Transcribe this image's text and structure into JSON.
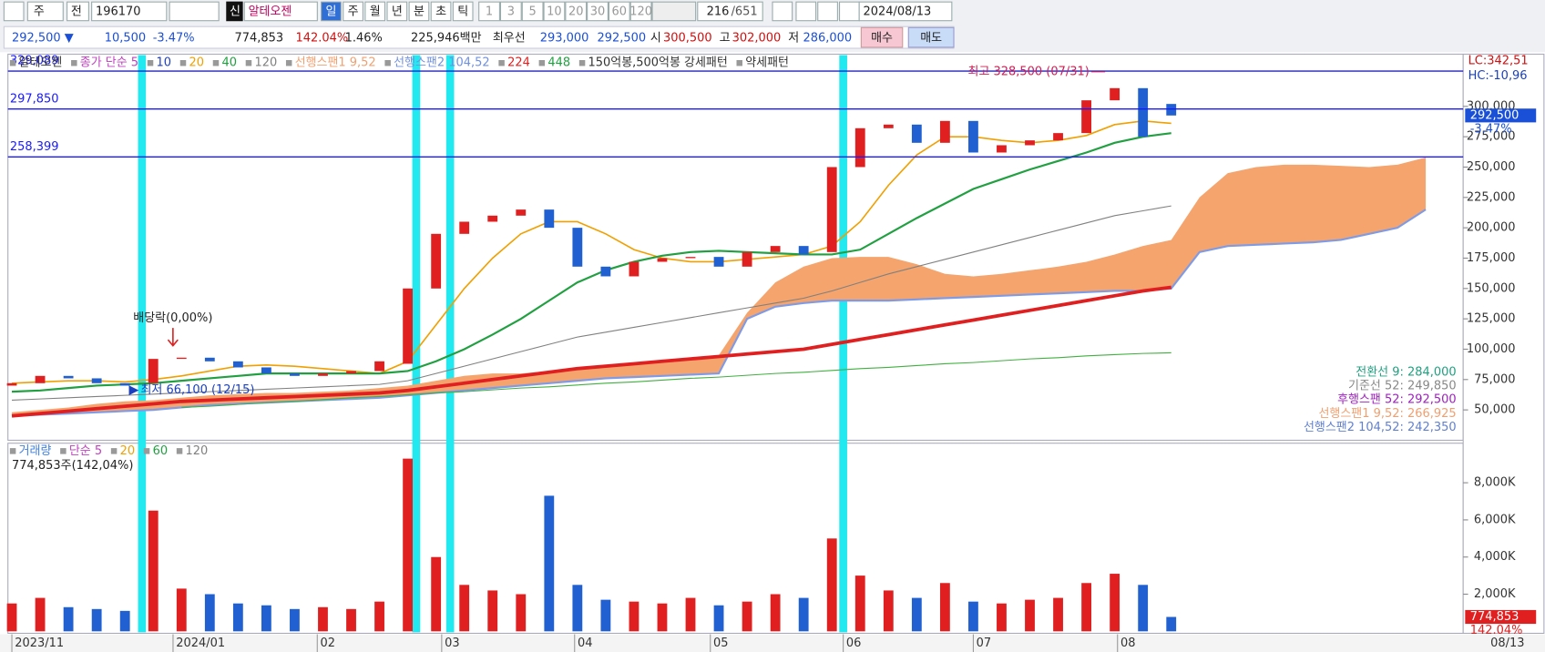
{
  "toolbar": {
    "chart_type": "주",
    "prev": "전",
    "code": "196170",
    "badge": "신",
    "name": "알테오젠",
    "periods": [
      "일",
      "주",
      "월",
      "년",
      "분",
      "초",
      "틱"
    ],
    "intervals": [
      "1",
      "3",
      "5",
      "10",
      "20",
      "30",
      "60",
      "120"
    ],
    "count": "216",
    "total": "/651",
    "date": "2024/08/13"
  },
  "quote": {
    "price": "292,500 ▼",
    "change": "10,500",
    "change_pct": "-3.47%",
    "volume": "774,853",
    "volume_ratio": "142.04%",
    "turnover_ratio": "1.46%",
    "amount": "225,946백만",
    "best_label": "최우선",
    "best_ask": "293,000",
    "best_bid": "292,500",
    "open_label": "시",
    "open": "300,500",
    "high_label": "고",
    "high": "302,000",
    "low_label": "저",
    "low": "286,000",
    "buy": "매수",
    "sell": "매도"
  },
  "chart_data": [
    {
      "type": "candlestick",
      "legend": [
        {
          "name": "알테오젠",
          "color": "#333333"
        },
        {
          "name": "종가 단순 5",
          "color": "#c040c0"
        },
        {
          "name": "10",
          "color": "#2040c0"
        },
        {
          "name": "20",
          "color": "#f0a000"
        },
        {
          "name": "40",
          "color": "#20a040"
        },
        {
          "name": "120",
          "color": "#808080"
        },
        {
          "name": "선행스팬1 9,52",
          "color": "#f0a070"
        },
        {
          "name": "선행스팬2 104,52",
          "color": "#7090e0"
        },
        {
          "name": "224",
          "color": "#e02020"
        },
        {
          "name": "448",
          "color": "#20a040"
        },
        {
          "name": "150억봉,500억봉 강세패턴",
          "color": "#333333"
        },
        {
          "name": "약세패턴",
          "color": "#333333"
        }
      ],
      "up_color": "#e02020",
      "down_color": "#2060d0",
      "open": [
        70000,
        72000,
        78000,
        76000,
        72000,
        72000,
        92000,
        93000,
        90000,
        85000,
        80000,
        78000,
        80000,
        82000,
        88000,
        150000,
        195000,
        205000,
        210000,
        215000,
        200000,
        168000,
        160000,
        172000,
        175000,
        176000,
        168000,
        180000,
        185000,
        180000,
        250000,
        282000,
        285000,
        270000,
        288000,
        262000,
        268000,
        272000,
        278000,
        305000,
        315000,
        302000
      ],
      "close": [
        72000,
        78000,
        76000,
        72000,
        70000,
        92000,
        93000,
        90000,
        85000,
        80000,
        78000,
        80000,
        82000,
        90000,
        150000,
        195000,
        205000,
        210000,
        215000,
        200000,
        168000,
        160000,
        172000,
        175000,
        176000,
        168000,
        180000,
        185000,
        178000,
        250000,
        282000,
        285000,
        270000,
        288000,
        262000,
        268000,
        272000,
        278000,
        305000,
        315000,
        275000,
        292500
      ],
      "series": [
        {
          "color": "#f0a000",
          "width": 1.5,
          "values": [
            72000,
            73000,
            74000,
            74000,
            73000,
            75000,
            78000,
            82000,
            86000,
            87000,
            86000,
            84000,
            82000,
            80000,
            90000,
            120000,
            150000,
            175000,
            195000,
            205000,
            205000,
            195000,
            182000,
            175000,
            172000,
            172000,
            174000,
            176000,
            178000,
            185000,
            205000,
            235000,
            260000,
            275000,
            275000,
            272000,
            270000,
            272000,
            276000,
            285000,
            288000,
            286000
          ]
        },
        {
          "color": "#20a040",
          "width": 2,
          "values": [
            65000,
            66000,
            68000,
            70000,
            71000,
            72000,
            74000,
            76000,
            78000,
            80000,
            80000,
            80000,
            80000,
            80000,
            82000,
            90000,
            100000,
            112000,
            125000,
            140000,
            155000,
            165000,
            172000,
            177000,
            180000,
            181000,
            180000,
            179000,
            178000,
            178000,
            182000,
            195000,
            208000,
            220000,
            232000,
            240000,
            248000,
            255000,
            262000,
            270000,
            275000,
            278000
          ]
        },
        {
          "color": "#808080",
          "width": 1,
          "values": [
            58000,
            59000,
            60000,
            61000,
            62000,
            63000,
            64000,
            65000,
            66000,
            67000,
            68000,
            69000,
            70000,
            71000,
            74000,
            80000,
            86000,
            92000,
            98000,
            104000,
            110000,
            114000,
            118000,
            122000,
            126000,
            130000,
            134000,
            138000,
            142000,
            148000,
            155000,
            162000,
            168000,
            174000,
            180000,
            186000,
            192000,
            198000,
            204000,
            210000,
            214000,
            218000
          ]
        },
        {
          "color": "#e02020",
          "width": 3.5,
          "values": [
            45000,
            47000,
            49000,
            51000,
            53000,
            55000,
            57000,
            58000,
            59000,
            60000,
            61000,
            62000,
            63000,
            64000,
            66000,
            69000,
            72000,
            75000,
            78000,
            81000,
            84000,
            86000,
            88000,
            90000,
            92000,
            94000,
            96000,
            98000,
            100000,
            104000,
            108000,
            112000,
            116000,
            120000,
            124000,
            128000,
            132000,
            136000,
            140000,
            144000,
            148000,
            151000
          ]
        },
        {
          "color": "#40b040",
          "width": 1,
          "values": [
            null,
            null,
            null,
            null,
            null,
            null,
            52000,
            53000,
            54500,
            56000,
            57000,
            58500,
            60000,
            61000,
            62500,
            64000,
            65000,
            66500,
            68000,
            69000,
            70500,
            72000,
            73000,
            74500,
            76000,
            77000,
            78500,
            80000,
            81000,
            82500,
            84000,
            85000,
            86500,
            88000,
            89000,
            90500,
            92000,
            93000,
            94500,
            95500,
            96500,
            97000
          ]
        }
      ],
      "cloud": {
        "fill": "#f4a46c",
        "line_color": "#7f9be6",
        "span1": [
          48000,
          50000,
          52000,
          55000,
          57000,
          58000,
          60000,
          62000,
          63000,
          64000,
          64000,
          65000,
          66000,
          68000,
          70000,
          74000,
          78000,
          80000,
          80000,
          82000,
          84000,
          86000,
          88000,
          90000,
          92000,
          95000,
          130000,
          155000,
          168000,
          175000,
          176000,
          176000,
          170000,
          162000,
          160000,
          162000,
          165000,
          168000,
          172000,
          178000,
          185000,
          190000,
          225000,
          245000,
          250000,
          252000,
          252000,
          251000,
          250000,
          252000,
          258000
        ],
        "span2": [
          45000,
          46000,
          47000,
          48000,
          49000,
          50000,
          52000,
          54000,
          55000,
          56000,
          57000,
          58000,
          59000,
          60000,
          62000,
          64000,
          66000,
          68000,
          70000,
          72000,
          74000,
          76000,
          77000,
          78000,
          79000,
          80000,
          125000,
          135000,
          138000,
          140000,
          140000,
          140000,
          141000,
          142000,
          143000,
          144000,
          145000,
          146000,
          147000,
          148000,
          148000,
          150000,
          180000,
          185000,
          186000,
          187000,
          188000,
          190000,
          195000,
          200000,
          215000
        ]
      },
      "hlines": [
        {
          "value": 329089,
          "label": "329,089"
        },
        {
          "value": 297850,
          "label": "297,850"
        },
        {
          "value": 258399,
          "label": "258,399"
        }
      ],
      "hline_color": "#1a1aff",
      "annotations": {
        "high": {
          "text": "최고 328,500 (07/31)",
          "index": 38.8,
          "value": 328500
        },
        "low": {
          "text": "최저 66,100 (12/15)",
          "index": 4,
          "value": 66100
        },
        "dividend": {
          "text": "배당락(0,00%)",
          "index": 5
        }
      },
      "pattern_marks": [
        4.6,
        14.3,
        15.5,
        29.4
      ],
      "pattern_color": "#22e8f0",
      "right_labels": {
        "lc": "LC:342,51",
        "hc": "HC:-10,96",
        "last": "292,500",
        "last_pct": "-3.47%"
      },
      "ichimoku_info": [
        {
          "text": "전환선 9: 284,000",
          "color": "#20a080"
        },
        {
          "text": "기준선 52: 249,850",
          "color": "#888888"
        },
        {
          "text": "후행스팬 52: 292,500",
          "color": "#a020c0"
        },
        {
          "text": "선행스팬1 9,52: 266,925",
          "color": "#f0a070"
        },
        {
          "text": "선행스팬2 104,52: 242,350",
          "color": "#6080d0"
        }
      ],
      "ylim": [
        25000,
        343000
      ],
      "yticks": [
        {
          "value": 50000,
          "label": "50,000"
        },
        {
          "value": 75000,
          "label": "75,000"
        },
        {
          "value": 100000,
          "label": "100,000"
        },
        {
          "value": 125000,
          "label": "125,000"
        },
        {
          "value": 150000,
          "label": "150,000"
        },
        {
          "value": 175000,
          "label": "175,000"
        },
        {
          "value": 200000,
          "label": "200,000"
        },
        {
          "value": 225000,
          "label": "225,000"
        },
        {
          "value": 250000,
          "label": "250,000"
        },
        {
          "value": 275000,
          "label": "275,000"
        },
        {
          "value": 300000,
          "label": "300,000"
        }
      ]
    },
    {
      "type": "bar",
      "legend": [
        {
          "name": "거래량",
          "color": "#4080e0"
        },
        {
          "name": "단순 5",
          "color": "#c040c0"
        },
        {
          "name": "20",
          "color": "#f0a000"
        },
        {
          "name": "60",
          "color": "#20a040"
        },
        {
          "name": "120",
          "color": "#808080"
        }
      ],
      "info": "774,853주(142,04%)",
      "values": [
        1500000,
        1800000,
        1300000,
        1200000,
        1100000,
        6500000,
        2300000,
        2000000,
        1500000,
        1400000,
        1200000,
        1300000,
        1200000,
        1600000,
        9300000,
        4000000,
        2500000,
        2200000,
        2000000,
        7300000,
        2500000,
        1700000,
        1600000,
        1500000,
        1800000,
        1400000,
        1600000,
        2000000,
        1800000,
        5000000,
        3000000,
        2200000,
        1800000,
        2600000,
        1600000,
        1500000,
        1700000,
        1800000,
        2600000,
        3100000,
        2500000,
        774853
      ],
      "ylim": [
        0,
        10130000
      ],
      "yticks": [
        {
          "value": 2000000,
          "label": "2,000K"
        },
        {
          "value": 4000000,
          "label": "4,000K"
        },
        {
          "value": 6000000,
          "label": "6,000K"
        },
        {
          "value": 8000000,
          "label": "8,000K"
        }
      ],
      "last_label": "774,853",
      "last_pct": "142.04%",
      "xticks": [
        {
          "value": 0,
          "label": "2023/11"
        },
        {
          "value": 5.7,
          "label": "2024/01"
        },
        {
          "value": 10.8,
          "label": "02"
        },
        {
          "value": 15.2,
          "label": "03"
        },
        {
          "value": 19.9,
          "label": "04"
        },
        {
          "value": 24.7,
          "label": "05"
        },
        {
          "value": 29.4,
          "label": "06"
        },
        {
          "value": 34,
          "label": "07"
        },
        {
          "value": 39.1,
          "label": "08"
        }
      ],
      "end_label": "08/13"
    }
  ]
}
